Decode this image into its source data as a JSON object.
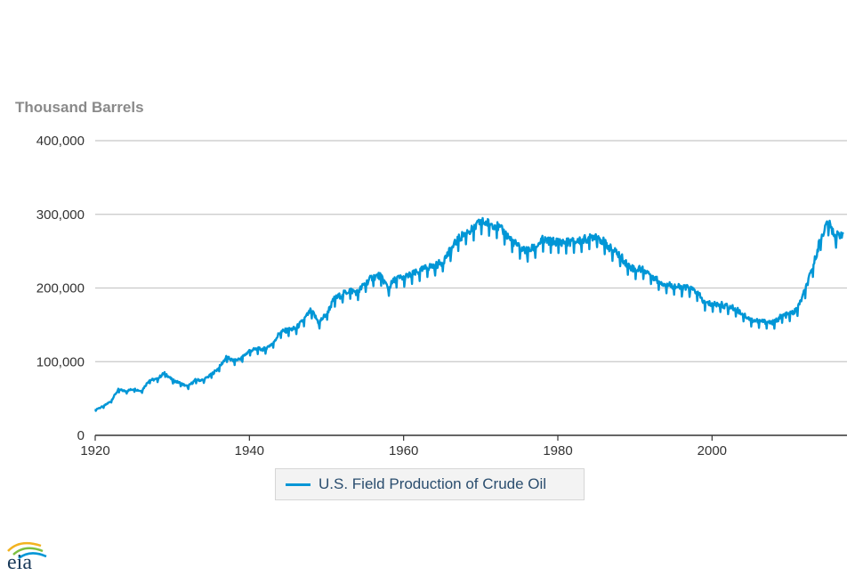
{
  "colors": {
    "series": "#0096d6",
    "grid": "#c8c8c8",
    "axis_text": "#333333",
    "ylabel": "#8a8a8a",
    "legend_text": "#2a4d6e"
  },
  "logo": {
    "text": "eia",
    "icon": "eia-logo-icon"
  },
  "chart_data": {
    "type": "line",
    "ylabel": "Thousand Barrels",
    "xlabel": "",
    "xlim": [
      1920,
      2017.5
    ],
    "ylim": [
      0,
      400000
    ],
    "yticks": [
      0,
      100000,
      200000,
      300000,
      400000
    ],
    "ytick_labels": [
      "0",
      "100,000",
      "200,000",
      "300,000",
      "400,000"
    ],
    "xticks": [
      1920,
      1940,
      1960,
      1980,
      2000
    ],
    "xtick_labels": [
      "1920",
      "1940",
      "1960",
      "1980",
      "2000"
    ],
    "grid": true,
    "legend_position": "bottom",
    "series": [
      {
        "name": "U.S. Field Production of Crude Oil",
        "x": [
          1920,
          1921,
          1922,
          1923,
          1924,
          1925,
          1926,
          1927,
          1928,
          1929,
          1930,
          1931,
          1932,
          1933,
          1934,
          1935,
          1936,
          1937,
          1938,
          1939,
          1940,
          1941,
          1942,
          1943,
          1944,
          1945,
          1946,
          1947,
          1948,
          1949,
          1950,
          1951,
          1952,
          1953,
          1954,
          1955,
          1956,
          1957,
          1958,
          1959,
          1960,
          1961,
          1962,
          1963,
          1964,
          1965,
          1966,
          1967,
          1968,
          1969,
          1970,
          1971,
          1972,
          1973,
          1974,
          1975,
          1976,
          1977,
          1978,
          1979,
          1980,
          1981,
          1982,
          1983,
          1984,
          1985,
          1986,
          1987,
          1988,
          1989,
          1990,
          1991,
          1992,
          1993,
          1994,
          1995,
          1996,
          1997,
          1998,
          1999,
          2000,
          2001,
          2002,
          2003,
          2004,
          2005,
          2006,
          2007,
          2008,
          2009,
          2010,
          2011,
          2012,
          2013,
          2014,
          2015,
          2016,
          2017
        ],
        "values": [
          35000,
          39000,
          46000,
          62000,
          60000,
          63000,
          60000,
          75000,
          76000,
          85000,
          75000,
          71000,
          66000,
          75000,
          75000,
          82000,
          91000,
          106000,
          101000,
          105000,
          115000,
          117000,
          117000,
          125000,
          140000,
          143000,
          145000,
          156000,
          170000,
          153000,
          165000,
          185000,
          191000,
          197000,
          194000,
          206000,
          215000,
          217000,
          200000,
          213000,
          214000,
          218000,
          222000,
          228000,
          230000,
          235000,
          250000,
          265000,
          275000,
          280000,
          290000,
          288000,
          285000,
          276000,
          265000,
          255000,
          250000,
          255000,
          265000,
          263000,
          263000,
          262000,
          263000,
          264000,
          268000,
          272000,
          262000,
          252000,
          245000,
          232000,
          225000,
          226000,
          219000,
          210000,
          205000,
          203000,
          200000,
          200000,
          195000,
          180000,
          178000,
          178000,
          175000,
          172000,
          165000,
          157000,
          155000,
          154000,
          153000,
          162000,
          164000,
          170000,
          195000,
          225000,
          265000,
          290000,
          270000,
          275000
        ]
      }
    ]
  }
}
